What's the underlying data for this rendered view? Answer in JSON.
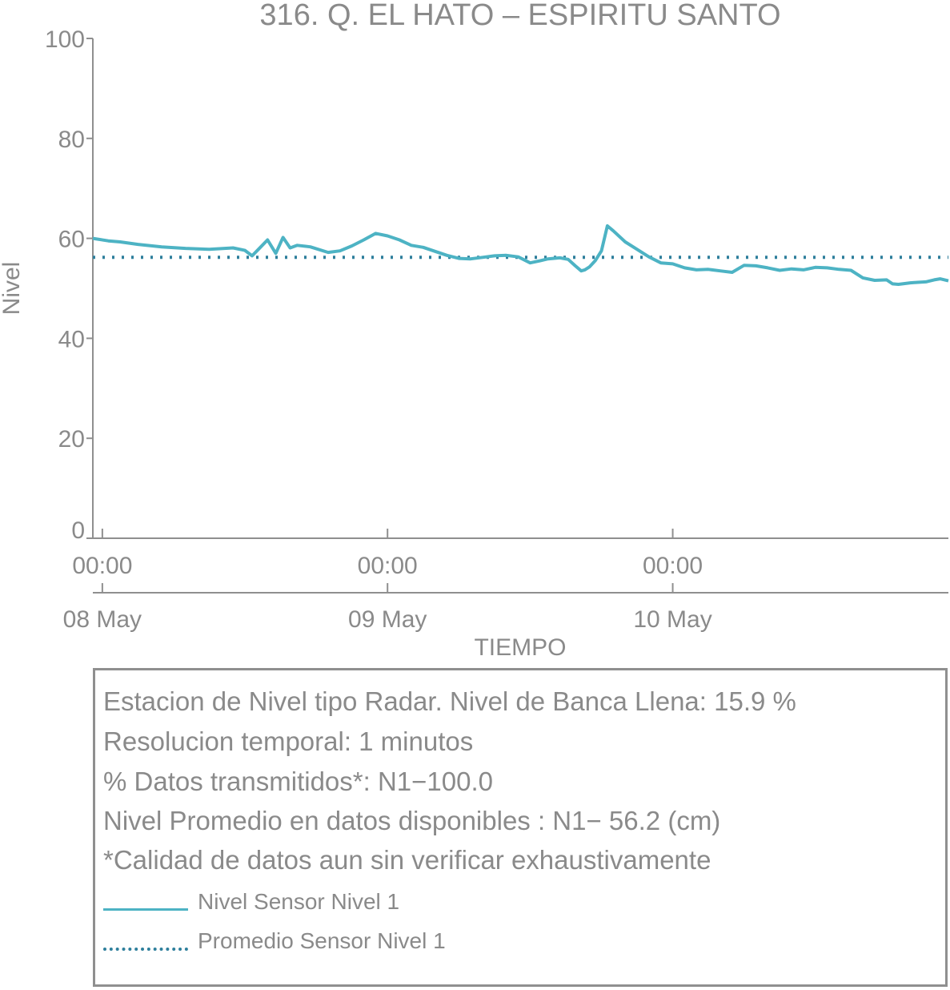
{
  "chart_data": {
    "type": "line",
    "title": "316. Q. EL HATO – ESPIRITU SANTO",
    "xlabel": "TIEMPO",
    "ylabel": "Nivel",
    "ylim": [
      0,
      100
    ],
    "yticks": [
      "0",
      "20",
      "40",
      "60",
      "80",
      "100"
    ],
    "xlim_hours": [
      -0.8,
      71.2
    ],
    "xticks_time": [
      "00:00",
      "00:00",
      "00:00"
    ],
    "xticks_date": [
      "08 May",
      "09 May",
      "10 May"
    ],
    "colors": {
      "level": "#4db3c4",
      "mean": "#2e7f9c",
      "axis": "#8f8f8f",
      "text": "#8a8a8a"
    },
    "series": [
      {
        "name": "Nivel Sensor Nivel 1",
        "style": "solid",
        "x_hours": [
          -0.8,
          0.5,
          1.5,
          3,
          5,
          7,
          9,
          11,
          12,
          12.6,
          13.3,
          13.9,
          14.6,
          15.2,
          15.8,
          16.4,
          17.5,
          19,
          20,
          21,
          22,
          23,
          24,
          25,
          26,
          27,
          28,
          29,
          30,
          31,
          32,
          33,
          34,
          35,
          36,
          36.8,
          37.5,
          38.5,
          39.2,
          39.8,
          40.3,
          40.6,
          41,
          41.5,
          42,
          42.5,
          43,
          44,
          45,
          46,
          47,
          48,
          49,
          50,
          51,
          52,
          53,
          54,
          55,
          56,
          57,
          58,
          59,
          60,
          61,
          62,
          63,
          64,
          65,
          66,
          66.5,
          67,
          68,
          68.6,
          69.3,
          70,
          70.5,
          71.2
        ],
        "y": [
          60,
          59.5,
          59.3,
          58.8,
          58.3,
          58,
          57.8,
          58.1,
          57.6,
          56.5,
          58.2,
          59.7,
          57,
          60.2,
          58.1,
          58.6,
          58.3,
          57.2,
          57.5,
          58.5,
          59.7,
          61,
          60.5,
          59.7,
          58.6,
          58.2,
          57.4,
          56.6,
          56,
          55.9,
          56.2,
          56.5,
          56.6,
          56.3,
          55.1,
          55.5,
          55.9,
          56.1,
          55.8,
          54.5,
          53.5,
          53.7,
          54.3,
          55.6,
          57.5,
          62.5,
          61.5,
          59.3,
          57.8,
          56.3,
          55.1,
          54.9,
          54.1,
          53.7,
          53.8,
          53.5,
          53.2,
          54.6,
          54.5,
          54.1,
          53.6,
          53.9,
          53.7,
          54.2,
          54.1,
          53.8,
          53.6,
          52.1,
          51.6,
          51.7,
          50.9,
          50.8,
          51.1,
          51.2,
          51.3,
          51.7,
          51.9,
          51.5
        ]
      },
      {
        "name": "Promedio Sensor Nivel 1",
        "style": "dotted",
        "value": 56.2
      }
    ]
  },
  "notes": [
    "Estacion de Nivel tipo Radar. Nivel de Banca Llena: 15.9 %",
    "Resolucion temporal: 1 minutos",
    "% Datos transmitidos*: N1−100.0",
    "Nivel Promedio en datos disponibles : N1− 56.2 (cm)",
    "*Calidad de datos aun sin verificar exhaustivamente"
  ],
  "legend": {
    "level_label": "Nivel Sensor Nivel 1",
    "mean_label": "Promedio Sensor Nivel 1"
  }
}
